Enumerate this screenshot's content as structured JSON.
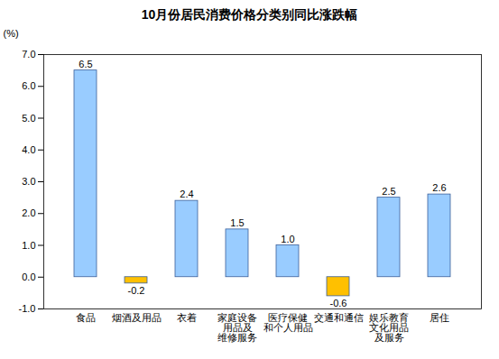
{
  "chart_data": {
    "type": "bar",
    "title": "10月份居民消费价格分类别同比涨跌幅",
    "y_label": "(%)",
    "categories": [
      "食品",
      "烟酒及用品",
      "衣着",
      "家庭设备\n用品及\n维修服务",
      "医疗保健\n和个人用品",
      "交通和通信",
      "娱乐教育\n文化用品\n及服务",
      "居住"
    ],
    "values": [
      6.5,
      -0.2,
      2.4,
      1.5,
      1.0,
      -0.6,
      2.5,
      2.6
    ],
    "value_labels": [
      "6.5",
      "-0.2",
      "2.4",
      "1.5",
      "1.0",
      "-0.6",
      "2.5",
      "2.6"
    ],
    "colors": [
      "#99ccff",
      "#ffc000",
      "#99ccff",
      "#99ccff",
      "#99ccff",
      "#ffc000",
      "#99ccff",
      "#99ccff"
    ],
    "ylim": [
      -1,
      7
    ],
    "yticks": [
      {
        "value": -1,
        "label": "-1.0"
      },
      {
        "value": 0,
        "label": "0.0"
      },
      {
        "value": 1,
        "label": "1.0"
      },
      {
        "value": 2,
        "label": "2.0"
      },
      {
        "value": 3,
        "label": "3.0"
      },
      {
        "value": 4,
        "label": "4.0"
      },
      {
        "value": 5,
        "label": "5.0"
      },
      {
        "value": 6,
        "label": "6.0"
      },
      {
        "value": 7,
        "label": "7.0"
      }
    ],
    "grid": false,
    "data_labels": true
  }
}
